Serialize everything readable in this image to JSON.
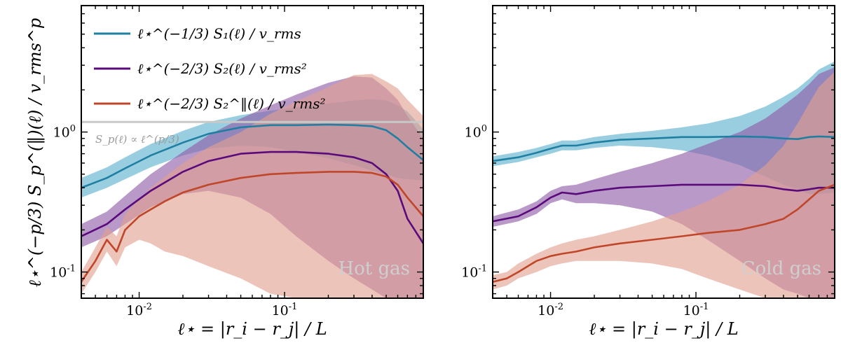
{
  "chart_data": [
    {
      "type": "line",
      "panel_label": "Hot gas",
      "xlabel": "ℓ⋆ = |r_i − r_j| / L",
      "ylabel": "ℓ⋆^(−p/3) S_p^(‖)(ℓ) / v_rms^p",
      "xscale": "log",
      "yscale": "log",
      "xlim": [
        0.004,
        0.9
      ],
      "ylim": [
        0.065,
        8.0
      ],
      "xticks": [
        "10^-2",
        "10^-1"
      ],
      "yticks": [
        "10^-1",
        "10^0"
      ],
      "reference_line": {
        "y": 1.18,
        "label": "S_p(ℓ) ∝ ℓ^(p/3)",
        "color": "#c8c8c8"
      },
      "legend": {
        "placement": "top-left",
        "entries": [
          {
            "label": "ℓ⋆^(−1/3) S₁(ℓ) / v_rms",
            "color": "#1f7fa3"
          },
          {
            "label": "ℓ⋆^(−2/3) S₂(ℓ) / v_rms²",
            "color": "#5a0a7a"
          },
          {
            "label": "ℓ⋆^(−2/3) S₂^‖(ℓ) / v_rms²",
            "color": "#c0462a"
          }
        ]
      },
      "series": [
        {
          "color": "#1f7fa3",
          "band_color": "#5ab0cd",
          "x": [
            0.004,
            0.006,
            0.008,
            0.012,
            0.02,
            0.03,
            0.05,
            0.08,
            0.12,
            0.2,
            0.3,
            0.4,
            0.5,
            0.6,
            0.7,
            0.9
          ],
          "y": [
            0.4,
            0.47,
            0.55,
            0.68,
            0.84,
            0.97,
            1.08,
            1.12,
            1.12,
            1.13,
            1.12,
            1.1,
            1.03,
            0.9,
            0.78,
            0.63
          ],
          "low": [
            0.34,
            0.4,
            0.46,
            0.56,
            0.68,
            0.76,
            0.8,
            0.78,
            0.72,
            0.65,
            0.58,
            0.53,
            0.5,
            0.47,
            0.46,
            0.45
          ],
          "high": [
            0.47,
            0.56,
            0.66,
            0.82,
            1.02,
            1.18,
            1.32,
            1.42,
            1.5,
            1.6,
            1.68,
            1.72,
            1.68,
            1.55,
            1.4,
            1.05
          ]
        },
        {
          "color": "#5a0a7a",
          "band_color": "#8e5aa6",
          "x": [
            0.004,
            0.006,
            0.008,
            0.012,
            0.02,
            0.03,
            0.05,
            0.08,
            0.12,
            0.2,
            0.3,
            0.4,
            0.5,
            0.6,
            0.7,
            0.9
          ],
          "y": [
            0.18,
            0.22,
            0.28,
            0.38,
            0.52,
            0.62,
            0.7,
            0.72,
            0.72,
            0.7,
            0.66,
            0.6,
            0.5,
            0.38,
            0.24,
            0.16
          ],
          "low": [
            0.15,
            0.18,
            0.22,
            0.29,
            0.36,
            0.38,
            0.34,
            0.26,
            0.18,
            0.12,
            0.09,
            0.075,
            0.065,
            0.065,
            0.065,
            0.065
          ],
          "high": [
            0.22,
            0.27,
            0.35,
            0.5,
            0.72,
            0.95,
            1.25,
            1.55,
            1.85,
            2.25,
            2.5,
            2.45,
            2.05,
            1.7,
            1.3,
            0.9
          ]
        },
        {
          "color": "#c0462a",
          "band_color": "#e2a08f",
          "x": [
            0.004,
            0.005,
            0.006,
            0.007,
            0.008,
            0.01,
            0.012,
            0.015,
            0.02,
            0.03,
            0.05,
            0.08,
            0.12,
            0.2,
            0.3,
            0.4,
            0.5,
            0.6,
            0.7,
            0.9
          ],
          "y": [
            0.085,
            0.12,
            0.17,
            0.14,
            0.2,
            0.25,
            0.28,
            0.32,
            0.37,
            0.42,
            0.47,
            0.5,
            0.51,
            0.52,
            0.52,
            0.51,
            0.48,
            0.42,
            0.34,
            0.25
          ],
          "low": [
            0.07,
            0.1,
            0.14,
            0.11,
            0.15,
            0.17,
            0.16,
            0.14,
            0.13,
            0.11,
            0.09,
            0.07,
            0.065,
            0.065,
            0.065,
            0.065,
            0.065,
            0.065,
            0.065,
            0.065
          ],
          "high": [
            0.1,
            0.15,
            0.21,
            0.18,
            0.26,
            0.33,
            0.4,
            0.48,
            0.6,
            0.78,
            1.0,
            1.35,
            1.65,
            2.1,
            2.55,
            2.6,
            2.3,
            2.05,
            1.7,
            1.3
          ]
        }
      ]
    },
    {
      "type": "line",
      "panel_label": "Cold gas",
      "xlabel": "ℓ⋆ = |r_i − r_j| / L",
      "xscale": "log",
      "yscale": "log",
      "xlim": [
        0.004,
        0.9
      ],
      "ylim": [
        0.065,
        8.0
      ],
      "xticks": [
        "10^-2",
        "10^-1"
      ],
      "yticks": [
        "10^-1",
        "10^0"
      ],
      "series": [
        {
          "color": "#1f7fa3",
          "band_color": "#5ab0cd",
          "x": [
            0.004,
            0.006,
            0.008,
            0.01,
            0.012,
            0.015,
            0.02,
            0.03,
            0.05,
            0.08,
            0.12,
            0.2,
            0.3,
            0.4,
            0.5,
            0.6,
            0.7,
            0.9
          ],
          "y": [
            0.62,
            0.66,
            0.71,
            0.76,
            0.8,
            0.8,
            0.84,
            0.88,
            0.9,
            0.92,
            0.92,
            0.93,
            0.92,
            0.9,
            0.89,
            0.92,
            0.93,
            0.92
          ],
          "low": [
            0.57,
            0.61,
            0.66,
            0.7,
            0.74,
            0.74,
            0.77,
            0.8,
            0.78,
            0.74,
            0.68,
            0.58,
            0.48,
            0.42,
            0.39,
            0.36,
            0.36,
            0.37
          ],
          "high": [
            0.67,
            0.72,
            0.77,
            0.82,
            0.87,
            0.87,
            0.92,
            0.97,
            1.02,
            1.08,
            1.15,
            1.3,
            1.52,
            1.78,
            2.05,
            2.4,
            2.8,
            3.2
          ]
        },
        {
          "color": "#5a0a7a",
          "band_color": "#8e5aa6",
          "x": [
            0.004,
            0.006,
            0.008,
            0.01,
            0.012,
            0.015,
            0.02,
            0.03,
            0.05,
            0.08,
            0.12,
            0.2,
            0.3,
            0.4,
            0.5,
            0.6,
            0.7,
            0.9
          ],
          "y": [
            0.23,
            0.25,
            0.29,
            0.34,
            0.37,
            0.36,
            0.38,
            0.4,
            0.41,
            0.42,
            0.42,
            0.42,
            0.41,
            0.39,
            0.38,
            0.39,
            0.4,
            0.4
          ],
          "low": [
            0.21,
            0.23,
            0.26,
            0.31,
            0.33,
            0.31,
            0.31,
            0.3,
            0.27,
            0.22,
            0.17,
            0.12,
            0.09,
            0.075,
            0.07,
            0.065,
            0.065,
            0.065
          ],
          "high": [
            0.25,
            0.28,
            0.32,
            0.38,
            0.41,
            0.42,
            0.46,
            0.52,
            0.6,
            0.7,
            0.82,
            1.0,
            1.25,
            1.55,
            1.85,
            2.2,
            2.6,
            2.9
          ]
        },
        {
          "color": "#c0462a",
          "band_color": "#e2a08f",
          "x": [
            0.004,
            0.005,
            0.006,
            0.008,
            0.01,
            0.012,
            0.015,
            0.02,
            0.03,
            0.05,
            0.08,
            0.12,
            0.2,
            0.3,
            0.4,
            0.5,
            0.6,
            0.7,
            0.9
          ],
          "y": [
            0.085,
            0.09,
            0.1,
            0.12,
            0.13,
            0.135,
            0.14,
            0.15,
            0.16,
            0.17,
            0.18,
            0.19,
            0.2,
            0.22,
            0.24,
            0.28,
            0.33,
            0.38,
            0.42
          ],
          "low": [
            0.075,
            0.08,
            0.09,
            0.1,
            0.11,
            0.115,
            0.12,
            0.12,
            0.12,
            0.115,
            0.105,
            0.09,
            0.075,
            0.065,
            0.065,
            0.065,
            0.065,
            0.065,
            0.065
          ],
          "high": [
            0.095,
            0.1,
            0.115,
            0.135,
            0.15,
            0.16,
            0.17,
            0.18,
            0.2,
            0.23,
            0.27,
            0.32,
            0.42,
            0.58,
            0.8,
            1.15,
            1.6,
            2.1,
            2.7
          ]
        }
      ]
    }
  ]
}
